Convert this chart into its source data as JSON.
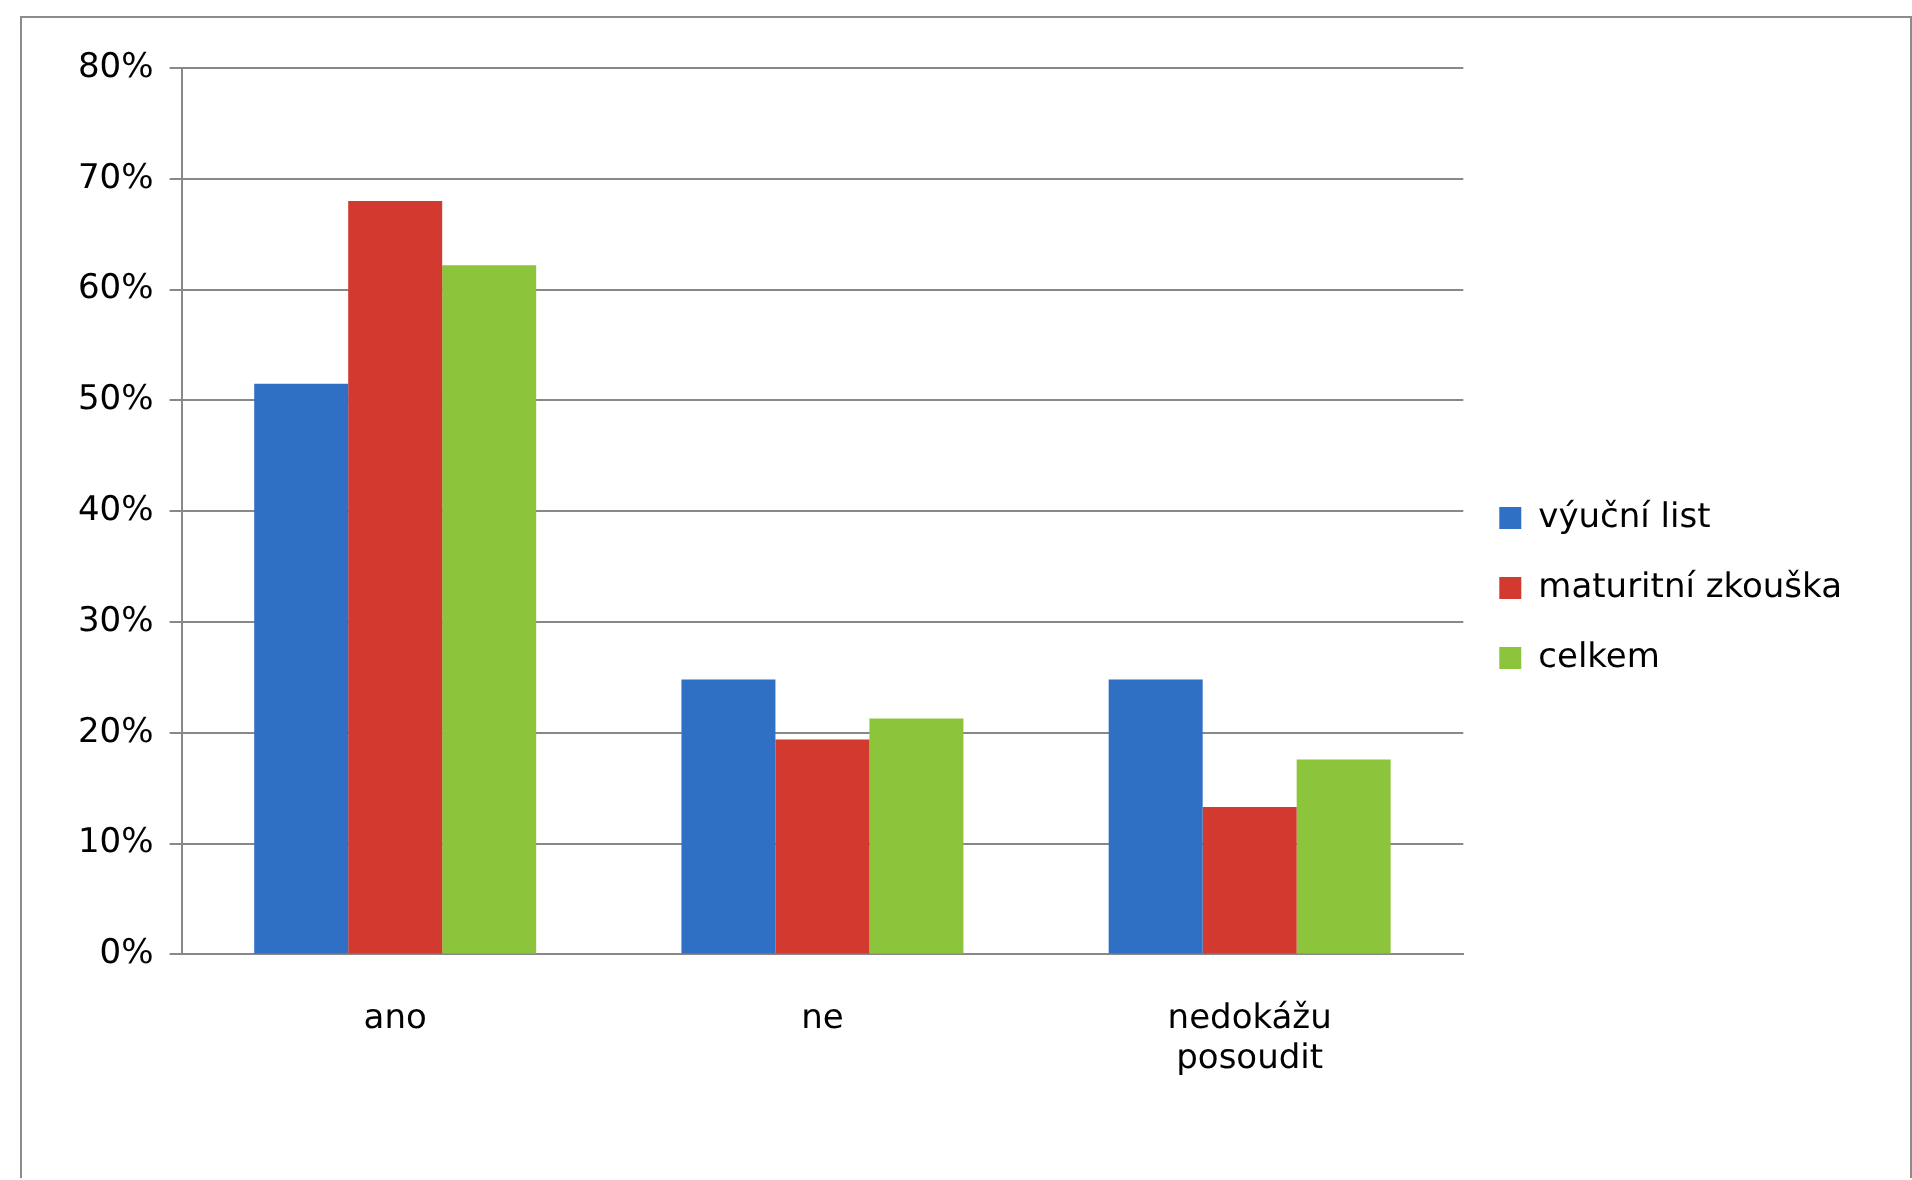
{
  "chart_data": {
    "type": "bar",
    "categories": [
      "ano",
      "ne",
      "nedokážu posoudit"
    ],
    "series": [
      {
        "name": "výuční list",
        "color": "#2f6fc4",
        "values": [
          51.5,
          24.8,
          24.8
        ]
      },
      {
        "name": "maturitní zkouška",
        "color": "#d23a30",
        "values": [
          68,
          19.4,
          13.3
        ]
      },
      {
        "name": "celkem",
        "color": "#8cc43c",
        "values": [
          62.2,
          21.3,
          17.6
        ]
      }
    ],
    "ylim": [
      0,
      80
    ],
    "yticks": [
      {
        "value": 0,
        "label": "0%"
      },
      {
        "value": 10,
        "label": "10%"
      },
      {
        "value": 20,
        "label": "20%"
      },
      {
        "value": 30,
        "label": "30%"
      },
      {
        "value": 40,
        "label": "40%"
      },
      {
        "value": 50,
        "label": "50%"
      },
      {
        "value": 60,
        "label": "60%"
      },
      {
        "value": 70,
        "label": "70%"
      },
      {
        "value": 80,
        "label": "80%"
      }
    ],
    "grid": "y",
    "legend": "right"
  }
}
